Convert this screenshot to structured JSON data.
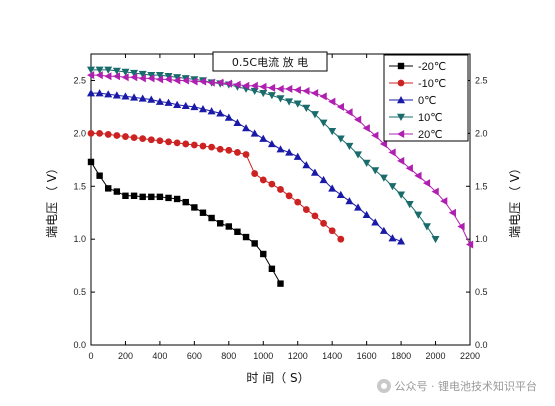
{
  "chart_data": {
    "type": "line",
    "title": "0.5C电流 放 电",
    "xlabel": "时 间（ S）",
    "ylabel": "端电压 （ V）",
    "xlim": [
      0,
      2200
    ],
    "ylim": [
      0,
      2.75
    ],
    "xticks": [
      0,
      200,
      400,
      600,
      800,
      1000,
      1200,
      1400,
      1600,
      1800,
      2000,
      2200
    ],
    "yticks": [
      0.0,
      0.5,
      1.0,
      1.5,
      2.0,
      2.5
    ],
    "tick_labels_x": [
      "0",
      "200",
      "400",
      "600",
      "800",
      "1000",
      "1200",
      "1400",
      "1600",
      "1800",
      "2000",
      "2200"
    ],
    "tick_labels_y": [
      "0.0",
      "0.5",
      "1.0",
      "1.5",
      "2.0",
      "2.5"
    ],
    "legend_position": "top-right",
    "series": [
      {
        "name": "-20℃",
        "color": "#000000",
        "marker": "square",
        "x": [
          0,
          50,
          100,
          150,
          200,
          250,
          300,
          350,
          400,
          450,
          500,
          550,
          600,
          650,
          700,
          750,
          800,
          850,
          900,
          950,
          1000,
          1050,
          1100
        ],
        "y": [
          1.73,
          1.6,
          1.48,
          1.45,
          1.41,
          1.41,
          1.4,
          1.4,
          1.4,
          1.39,
          1.38,
          1.35,
          1.3,
          1.25,
          1.2,
          1.15,
          1.12,
          1.07,
          1.02,
          0.96,
          0.86,
          0.72,
          0.58
        ]
      },
      {
        "name": "-10℃",
        "color": "#cc2222",
        "marker": "circle",
        "x": [
          0,
          50,
          100,
          150,
          200,
          250,
          300,
          350,
          400,
          450,
          500,
          550,
          600,
          650,
          700,
          750,
          800,
          850,
          900,
          950,
          1000,
          1050,
          1100,
          1150,
          1200,
          1250,
          1300,
          1350,
          1400,
          1450
        ],
        "y": [
          2.0,
          2.0,
          1.99,
          1.98,
          1.97,
          1.96,
          1.95,
          1.94,
          1.93,
          1.92,
          1.91,
          1.9,
          1.89,
          1.88,
          1.87,
          1.85,
          1.84,
          1.82,
          1.8,
          1.62,
          1.56,
          1.52,
          1.47,
          1.41,
          1.35,
          1.28,
          1.22,
          1.15,
          1.08,
          1.0
        ]
      },
      {
        "name": "0℃",
        "color": "#1a1aa8",
        "marker": "triangle-up",
        "x": [
          0,
          50,
          100,
          150,
          200,
          250,
          300,
          350,
          400,
          450,
          500,
          550,
          600,
          650,
          700,
          750,
          800,
          850,
          900,
          950,
          1000,
          1050,
          1100,
          1150,
          1200,
          1250,
          1300,
          1350,
          1400,
          1450,
          1500,
          1550,
          1600,
          1650,
          1700,
          1750,
          1800
        ],
        "y": [
          2.38,
          2.38,
          2.37,
          2.36,
          2.35,
          2.34,
          2.33,
          2.32,
          2.3,
          2.29,
          2.27,
          2.26,
          2.25,
          2.23,
          2.21,
          2.19,
          2.15,
          2.1,
          2.05,
          2.0,
          1.95,
          1.9,
          1.85,
          1.82,
          1.78,
          1.7,
          1.63,
          1.56,
          1.48,
          1.42,
          1.36,
          1.3,
          1.23,
          1.16,
          1.08,
          1.01,
          0.98
        ]
      },
      {
        "name": "10℃",
        "color": "#1a6b6b",
        "marker": "triangle-down",
        "x": [
          0,
          50,
          100,
          150,
          200,
          250,
          300,
          350,
          400,
          450,
          500,
          550,
          600,
          650,
          700,
          750,
          800,
          850,
          900,
          950,
          1000,
          1050,
          1100,
          1150,
          1200,
          1250,
          1300,
          1350,
          1400,
          1450,
          1500,
          1550,
          1600,
          1650,
          1700,
          1750,
          1800,
          1850,
          1900,
          1950,
          2000
        ],
        "y": [
          2.6,
          2.6,
          2.6,
          2.59,
          2.58,
          2.57,
          2.56,
          2.55,
          2.55,
          2.54,
          2.53,
          2.52,
          2.51,
          2.5,
          2.48,
          2.47,
          2.46,
          2.44,
          2.42,
          2.4,
          2.38,
          2.36,
          2.33,
          2.3,
          2.28,
          2.24,
          2.18,
          2.1,
          2.02,
          1.95,
          1.88,
          1.8,
          1.72,
          1.65,
          1.58,
          1.5,
          1.42,
          1.33,
          1.23,
          1.12,
          1.0
        ]
      },
      {
        "name": "20℃",
        "color": "#b020b0",
        "marker": "triangle-left",
        "x": [
          0,
          50,
          100,
          150,
          200,
          250,
          300,
          350,
          400,
          450,
          500,
          550,
          600,
          650,
          700,
          750,
          800,
          850,
          900,
          950,
          1000,
          1050,
          1100,
          1150,
          1200,
          1250,
          1300,
          1350,
          1400,
          1450,
          1500,
          1550,
          1600,
          1650,
          1700,
          1750,
          1800,
          1850,
          1900,
          1950,
          2000,
          2050,
          2100,
          2150,
          2200
        ],
        "y": [
          2.55,
          2.55,
          2.54,
          2.54,
          2.53,
          2.53,
          2.52,
          2.52,
          2.51,
          2.51,
          2.5,
          2.5,
          2.49,
          2.49,
          2.48,
          2.48,
          2.47,
          2.46,
          2.45,
          2.45,
          2.44,
          2.43,
          2.42,
          2.42,
          2.41,
          2.4,
          2.38,
          2.35,
          2.3,
          2.25,
          2.2,
          2.13,
          2.05,
          1.98,
          1.9,
          1.82,
          1.74,
          1.67,
          1.6,
          1.53,
          1.45,
          1.36,
          1.25,
          1.12,
          0.95
        ]
      }
    ]
  },
  "watermark": {
    "text": "公众号 · 锂电池技术知识平台"
  }
}
